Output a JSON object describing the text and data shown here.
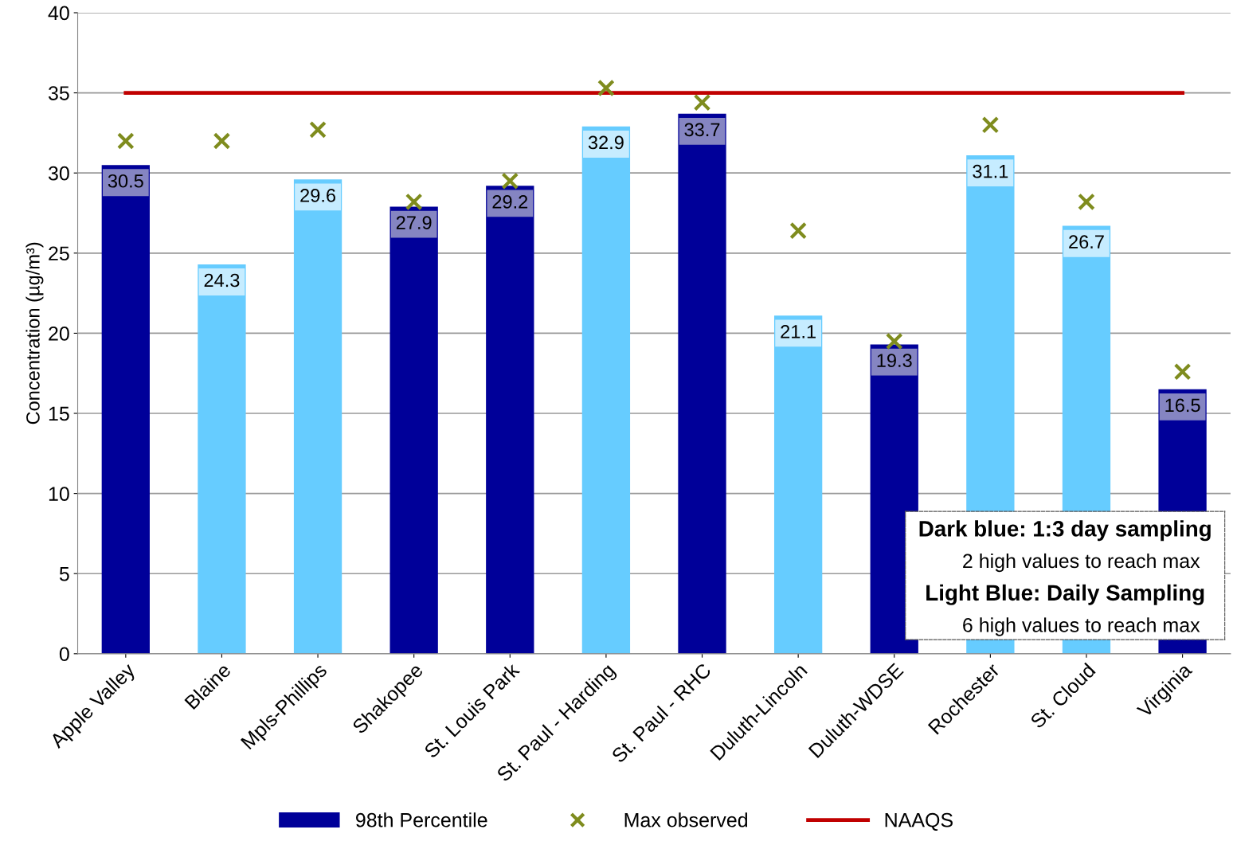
{
  "chart_data": {
    "type": "bar",
    "ylabel": "Concentration (µg/m³)",
    "categories": [
      "Apple Valley",
      "Blaine",
      "Mpls-Phillips",
      "Shakopee",
      "St. Louis Park",
      "St. Paul - Harding",
      "St. Paul - RHC",
      "Duluth-Lincoln",
      "Duluth-WDSE",
      "Rochester",
      "St. Cloud",
      "Virginia"
    ],
    "series": [
      {
        "name": "98th Percentile",
        "color": "#8585c2",
        "colors": [
          "#000099",
          "#66ccff",
          "#66ccff",
          "#000099",
          "#000099",
          "#66ccff",
          "#000099",
          "#66ccff",
          "#000099",
          "#66ccff",
          "#66ccff",
          "#000099"
        ],
        "values": [
          30.5,
          24.3,
          29.6,
          27.9,
          29.2,
          32.9,
          33.7,
          21.1,
          19.3,
          31.1,
          26.7,
          16.5
        ],
        "data_labels": true
      },
      {
        "name": "Max observed",
        "type": "scatter",
        "marker": "cross",
        "color": "#7f8c1e",
        "values": [
          32.0,
          32.0,
          32.7,
          28.2,
          29.5,
          35.3,
          34.4,
          26.4,
          19.5,
          33.0,
          28.2,
          17.6
        ]
      },
      {
        "name": "NAAQS",
        "type": "line",
        "marker": "none",
        "color": "#c00000",
        "values": [
          35,
          35,
          35,
          35,
          35,
          35,
          35,
          35,
          35,
          35,
          35,
          35
        ]
      }
    ],
    "annotations": [
      "Dark blue: 1:3 day sampling",
      "2 high values to reach max",
      "Light Blue: Daily Sampling",
      "6 high values to reach max"
    ],
    "ylim": [
      0,
      40
    ],
    "yticks": [
      0,
      5,
      10,
      15,
      20,
      25,
      30,
      35,
      40
    ],
    "grid": "y",
    "legend": "bottom"
  }
}
